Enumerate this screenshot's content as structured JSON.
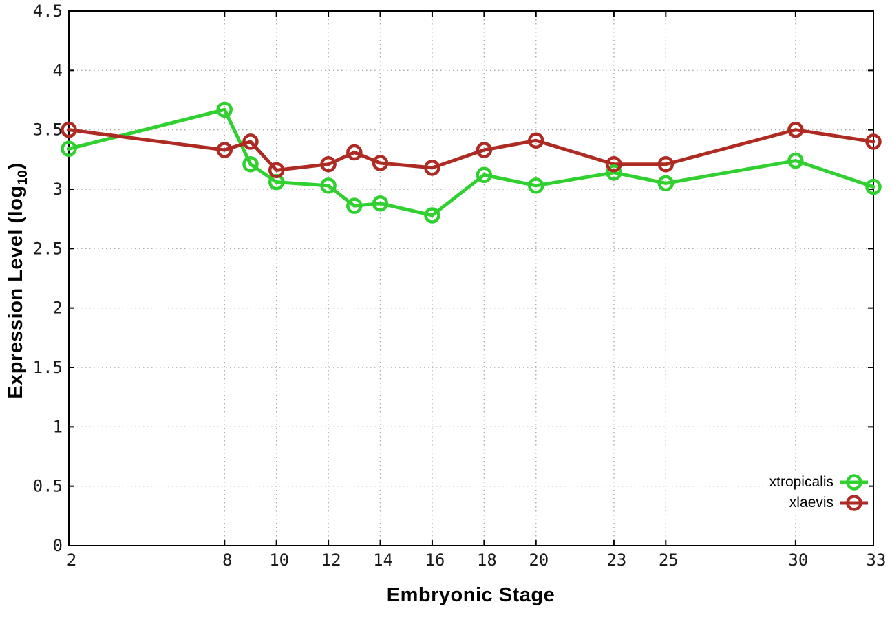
{
  "chart_data": {
    "type": "line",
    "title": "",
    "xlabel": "Embryonic Stage",
    "ylabel": {
      "prefix": "Expression Level (log",
      "sub": "10",
      "suffix": ")"
    },
    "x": [
      2,
      8,
      9,
      10,
      12,
      13,
      14,
      16,
      18,
      20,
      23,
      25,
      30,
      33
    ],
    "xlim": [
      2,
      33
    ],
    "ylim": [
      0,
      4.5
    ],
    "x_ticks": [
      2,
      8,
      10,
      12,
      14,
      16,
      18,
      20,
      23,
      25,
      30,
      33
    ],
    "y_ticks": [
      0,
      0.5,
      1,
      1.5,
      2,
      2.5,
      3,
      3.5,
      4,
      4.5
    ],
    "y_tick_labels": [
      "0",
      "0.5",
      "1",
      "1.5",
      "2",
      "2.5",
      "3",
      "3.5",
      "4",
      "4.5"
    ],
    "grid": true,
    "grid_color": "#aaaaaa",
    "axis_color": "#000000",
    "tick_label_color": "#1a1a1a",
    "legend_position": "bottom-right",
    "marker": "open-circle",
    "series": [
      {
        "name": "xtropicalis",
        "color": "#2FD02F",
        "values": [
          3.34,
          3.67,
          3.21,
          3.06,
          3.03,
          2.86,
          2.88,
          2.78,
          3.12,
          3.03,
          3.14,
          3.05,
          3.24,
          3.02
        ]
      },
      {
        "name": "xlaevis",
        "color": "#AE2B24",
        "values": [
          3.5,
          3.33,
          3.4,
          3.16,
          3.21,
          3.31,
          3.22,
          3.18,
          3.33,
          3.41,
          3.21,
          3.21,
          3.5,
          3.4
        ]
      }
    ]
  }
}
